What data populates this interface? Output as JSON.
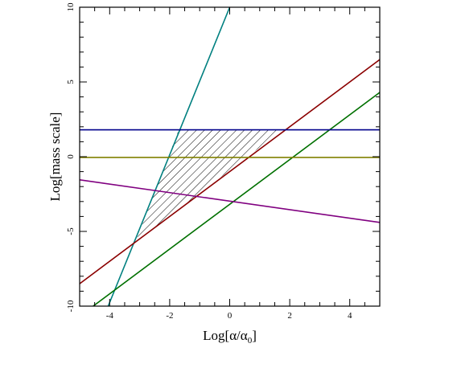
{
  "chart_data": {
    "type": "line",
    "xlabel": "Log[α/α",
    "xlabel_subscript": "0",
    "xlabel_suffix": "]",
    "ylabel": "Log[mass scale]",
    "xlim": [
      -5,
      5
    ],
    "ylim": [
      -10,
      10
    ],
    "x_ticks": [
      -4,
      -2,
      0,
      2,
      4
    ],
    "y_ticks": [
      -10,
      -5,
      0,
      5,
      10
    ],
    "x_tick_labels": [
      "-4",
      "-2",
      "0",
      "2",
      "4"
    ],
    "y_tick_labels": [
      "-10",
      "-5",
      "0",
      "5",
      "10"
    ],
    "x_minor_step": 0.5,
    "y_minor_step": 1,
    "grid": false,
    "series": [
      {
        "color": "#008080",
        "points": [
          [
            -4.05,
            -10
          ],
          [
            0,
            10
          ]
        ]
      },
      {
        "color": "#8b0000",
        "points": [
          [
            -5,
            -8.5
          ],
          [
            5,
            6.5
          ]
        ]
      },
      {
        "color": "#007000",
        "points": [
          [
            -4.55,
            -10
          ],
          [
            5,
            4.3
          ]
        ]
      },
      {
        "color": "#00008b",
        "points": [
          [
            -5,
            1.8
          ],
          [
            5,
            1.8
          ]
        ]
      },
      {
        "color": "#808000",
        "points": [
          [
            -5,
            -0.05
          ],
          [
            5,
            -0.05
          ]
        ]
      },
      {
        "color": "#800080",
        "points": [
          [
            -5,
            -1.55
          ],
          [
            5,
            -4.4
          ]
        ]
      }
    ],
    "shaded_region": {
      "pattern": "hatched",
      "vertices": [
        [
          -3.15,
          -5.75
        ],
        [
          -1.7,
          1.8
        ],
        [
          1.77,
          1.8
        ]
      ]
    }
  }
}
